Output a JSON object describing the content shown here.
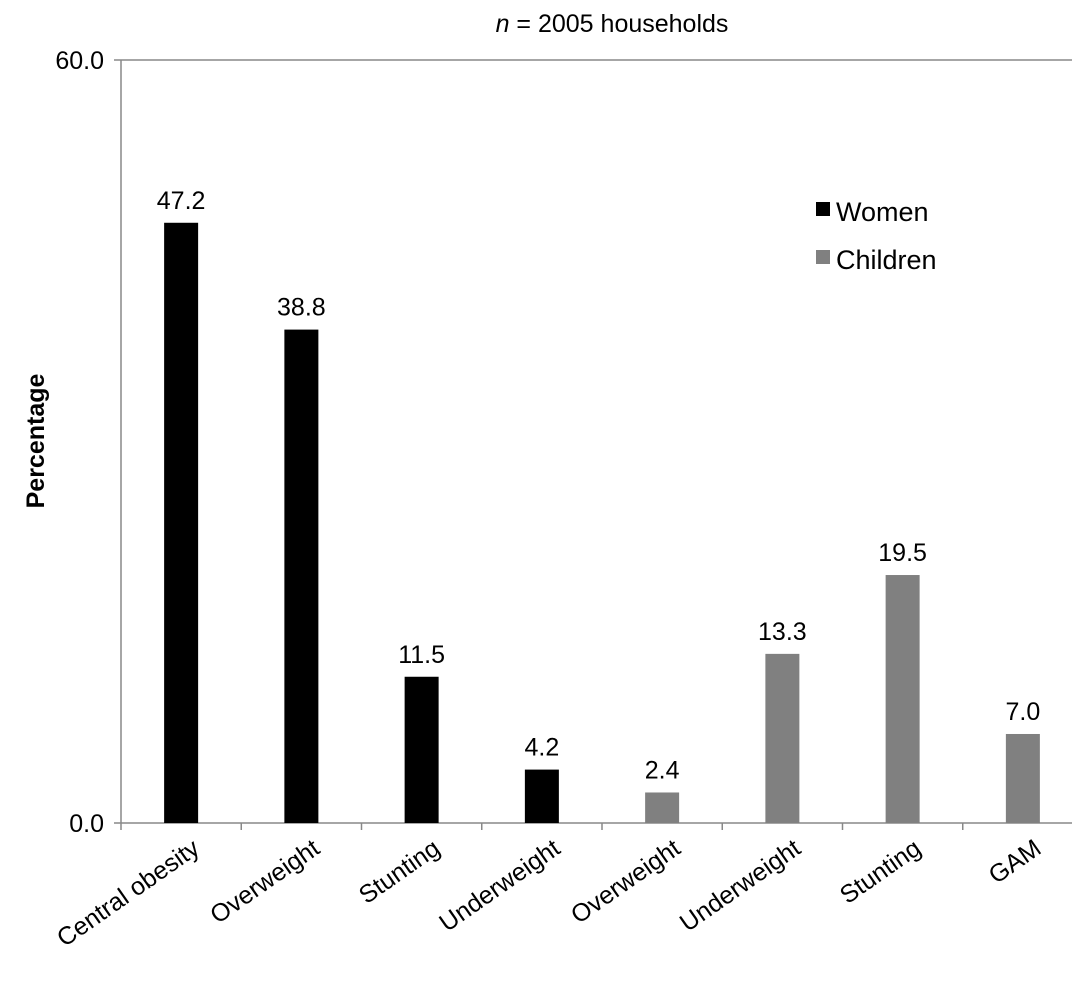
{
  "chart_data": {
    "type": "bar",
    "title_prefix": "n",
    "title_rest": " = 2005 households",
    "xlabel": "",
    "ylabel": "Percentage",
    "ylim": [
      0,
      60
    ],
    "yticks": [
      "0.0",
      "60.0"
    ],
    "categories": [
      "Central obesity",
      "Overweight",
      "Stunting",
      "Underweight",
      "Overweight",
      "Underweight",
      "Stunting",
      "GAM"
    ],
    "series": [
      {
        "name": "Women",
        "color": "#000000",
        "values": [
          47.2,
          38.8,
          11.5,
          4.2,
          null,
          null,
          null,
          null
        ]
      },
      {
        "name": "Children",
        "color": "#808080",
        "values": [
          null,
          null,
          null,
          null,
          2.4,
          13.3,
          19.5,
          7.0
        ]
      }
    ],
    "data_labels": [
      "47.2",
      "38.8",
      "11.5",
      "4.2",
      "2.4",
      "13.3",
      "19.5",
      "7.0"
    ],
    "legend_position": "top-right",
    "grid": false
  }
}
